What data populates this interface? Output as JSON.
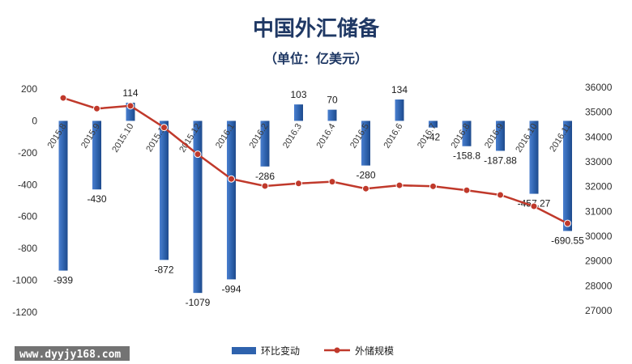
{
  "chart_data": {
    "type": "bar",
    "title": "中国外汇储备",
    "subtitle": "（单位：亿美元）",
    "categories": [
      "2015.8",
      "2015.9",
      "2015.10",
      "2015.11",
      "2015.12",
      "2016.1",
      "2016.2",
      "2016.3",
      "2016.4",
      "2016.5",
      "2016.6",
      "2016.7",
      "2016.8",
      "2016.9",
      "2016.10",
      "2016.11"
    ],
    "series": [
      {
        "name": "环比变动",
        "type": "bar",
        "axis": "left",
        "color": "#2e62ad",
        "values": [
          -939,
          -430,
          114,
          -872,
          -1079,
          -994,
          -286,
          103,
          70,
          -280,
          134,
          -42,
          -158.8,
          -187.88,
          -457.27,
          -690.55
        ],
        "labels": [
          "-939",
          "-430",
          "114",
          "-872",
          "-1079",
          "-994",
          "-286",
          "103",
          "70",
          "-280",
          "134",
          "-42",
          "-158.8",
          "-187.88",
          "-457.27",
          "-690.55"
        ]
      },
      {
        "name": "外储规模",
        "type": "line",
        "axis": "right",
        "color": "#c0392b",
        "values": [
          35574,
          35144,
          35255,
          34383,
          33304,
          32309,
          32023,
          32126,
          32197,
          31917,
          32052,
          32011,
          31852,
          31664,
          31207,
          30516
        ]
      }
    ],
    "y_left": {
      "min": -1200,
      "max": 200,
      "ticks": [
        200,
        0,
        -200,
        -400,
        -600,
        -800,
        -1000,
        -1200
      ]
    },
    "y_right": {
      "min": 27000,
      "max": 36000,
      "ticks": [
        36000,
        35000,
        34000,
        33000,
        32000,
        31000,
        30000,
        29000,
        28000,
        27000
      ]
    },
    "grid": false,
    "legend_position": "bottom"
  },
  "watermark": "www.dyyjy168.com"
}
